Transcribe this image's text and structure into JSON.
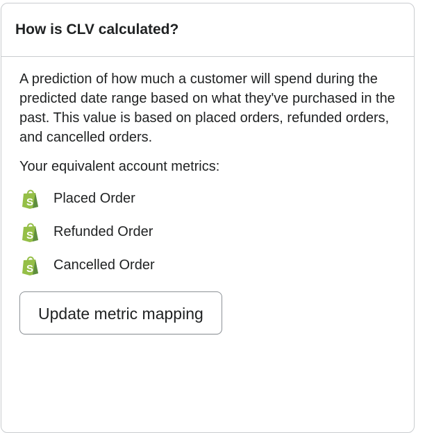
{
  "card": {
    "title": "How is CLV calculated?",
    "description": "A prediction of how much a customer will spend during the predicted date range based on what they've purchased in the past. This value is based on placed orders, refunded orders, and cancelled orders.",
    "metrics_label": "Your equivalent account metrics:",
    "metrics": [
      {
        "icon": "shopify-bag-icon",
        "label": "Placed Order"
      },
      {
        "icon": "shopify-bag-icon",
        "label": "Refunded Order"
      },
      {
        "icon": "shopify-bag-icon",
        "label": "Cancelled Order"
      }
    ],
    "button_label": "Update metric mapping",
    "colors": {
      "shopify_green": "#95bf47",
      "shopify_dark": "#5e8e3e"
    }
  }
}
